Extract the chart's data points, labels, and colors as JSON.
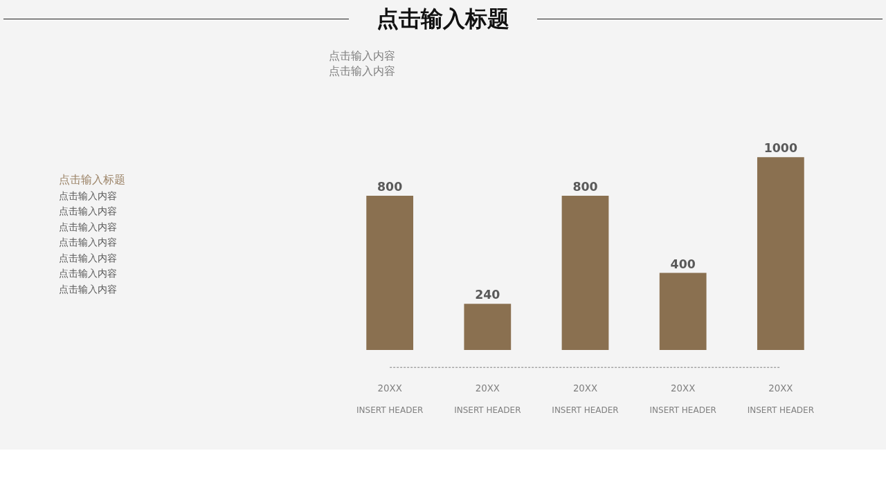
{
  "chart_data": {
    "type": "bar",
    "title": "点击输入标题",
    "subtitle": "点击输入内容",
    "categories": [
      "20XX\nINSERT HEADER",
      "20XX\nINSERT HEADER",
      "20XX\nINSERT HEADER",
      "20XX\nINSERT HEADER",
      "20XX\nINSERT HEADER"
    ],
    "values": [
      800,
      240,
      800,
      400,
      1000
    ],
    "color": "#8a7050",
    "data_labels": true,
    "annotations": [
      "点击输入内容",
      "点击输入标题",
      "点击输入内容",
      "点击输入内容",
      "点击输入内容",
      "点击输入内容",
      "点击输入内容",
      "点击输入内容",
      "点击输入内容"
    ]
  }
}
